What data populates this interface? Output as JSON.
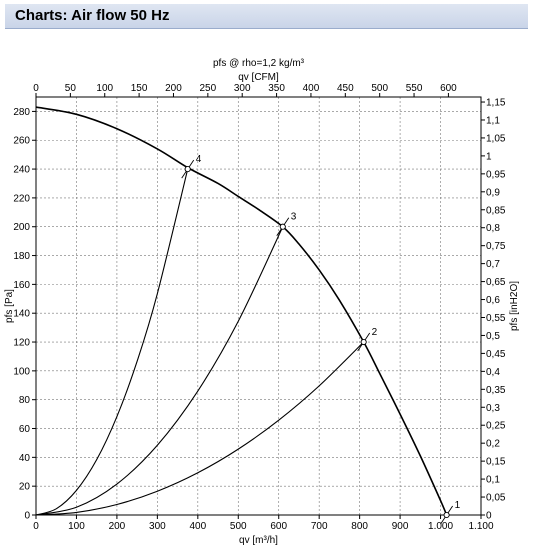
{
  "header": {
    "title": "Charts: Air flow 50 Hz"
  },
  "chart_data": {
    "type": "line",
    "title": "pfs @ rho=1,2 kg/m³",
    "xlabel": "qv [m³/h]",
    "x2label": "qv [CFM]",
    "ylabel": "pfs [Pa]",
    "y2label": "pfs [inH2O]",
    "xlim": [
      0,
      1100
    ],
    "ylim": [
      0,
      290
    ],
    "x2lim": [
      0,
      647.4
    ],
    "y2lim": [
      0,
      1.164
    ],
    "grid": true,
    "x_ticks": [
      "0",
      "100",
      "200",
      "300",
      "400",
      "500",
      "600",
      "700",
      "800",
      "900",
      "1.000",
      "1.100"
    ],
    "x2_ticks": [
      "0",
      "50",
      "100",
      "150",
      "200",
      "250",
      "300",
      "350",
      "400",
      "450",
      "500",
      "550",
      "600"
    ],
    "y_ticks": [
      "0",
      "20",
      "40",
      "60",
      "80",
      "100",
      "120",
      "140",
      "160",
      "180",
      "200",
      "220",
      "240",
      "260",
      "280"
    ],
    "y2_ticks": [
      "0",
      "0,05",
      "0,1",
      "0,15",
      "0,2",
      "0,25",
      "0,3",
      "0,35",
      "0,4",
      "0,45",
      "0,5",
      "0,55",
      "0,6",
      "0,65",
      "0,7",
      "0,75",
      "0,8",
      "0,85",
      "0,9",
      "0,95",
      "1",
      "1,05",
      "1,1",
      "1,15"
    ],
    "series": [
      {
        "x": [
          0,
          100,
          200,
          300,
          375,
          450,
          500,
          550,
          610,
          650,
          700,
          750,
          810,
          850,
          900,
          950,
          1000,
          1015
        ],
        "values": [
          283,
          278,
          268,
          254,
          241,
          230,
          221,
          212,
          200,
          188,
          170,
          149,
          120,
          98,
          70,
          41,
          10,
          0
        ]
      },
      {
        "x": [
          0,
          100,
          200,
          300,
          400,
          500,
          600,
          700,
          810
        ],
        "values": [
          0,
          1.8,
          7.3,
          16.5,
          29.3,
          45.7,
          65.8,
          89.6,
          120
        ]
      },
      {
        "x": [
          0,
          100,
          200,
          300,
          400,
          500,
          610
        ],
        "values": [
          0,
          5.4,
          21.5,
          48.4,
          86,
          134.4,
          200
        ]
      },
      {
        "x": [
          0,
          50,
          100,
          150,
          200,
          250,
          300,
          375
        ],
        "values": [
          0,
          4.3,
          17.1,
          38.4,
          68.3,
          106.7,
          153.6,
          240
        ]
      }
    ],
    "operating_points": [
      {
        "label": "1",
        "x": 1015,
        "y": 0
      },
      {
        "label": "2",
        "x": 810,
        "y": 120
      },
      {
        "label": "3",
        "x": 610,
        "y": 200
      },
      {
        "label": "4",
        "x": 375,
        "y": 240
      }
    ]
  }
}
